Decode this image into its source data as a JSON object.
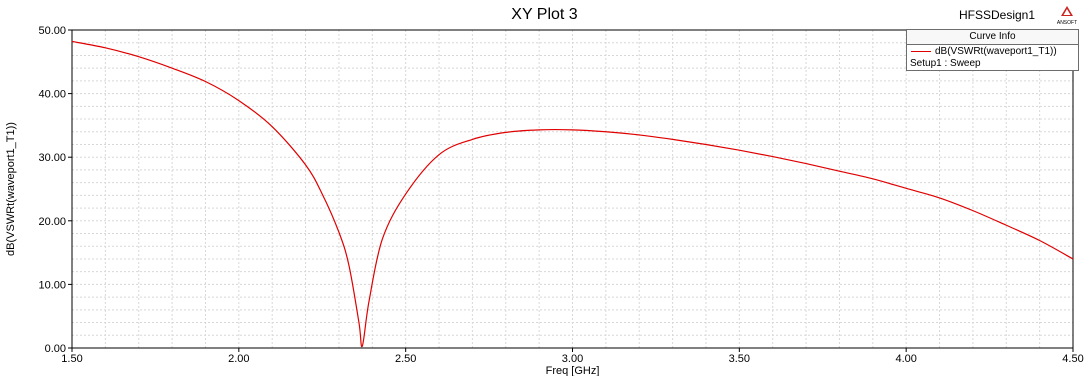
{
  "window": {
    "design_name": "HFSSDesign1",
    "brand": "ANSOFT",
    "brand_icon": "ansoft-triangle-icon"
  },
  "legend": {
    "title": "Curve Info",
    "entries": [
      {
        "label": "dB(VSWRt(waveport1_T1))",
        "sublabel": "Setup1 : Sweep",
        "color": "#e00000"
      }
    ]
  },
  "chart_data": {
    "type": "line",
    "title": "XY Plot 3",
    "xlabel": "Freq [GHz]",
    "ylabel": "dB(VSWRt(waveport1_T1))",
    "xlim": [
      1.5,
      4.5
    ],
    "ylim": [
      0,
      50
    ],
    "xticks": [
      1.5,
      2.0,
      2.5,
      3.0,
      3.5,
      4.0,
      4.5
    ],
    "xtick_labels": [
      "1.50",
      "2.00",
      "2.50",
      "3.00",
      "3.50",
      "4.00",
      "4.50"
    ],
    "yticks": [
      0,
      10,
      20,
      30,
      40,
      50
    ],
    "ytick_labels": [
      "0.00",
      "10.00",
      "20.00",
      "30.00",
      "40.00",
      "50.00"
    ],
    "grid": true,
    "legend_position": "top-right",
    "series": [
      {
        "name": "dB(VSWRt(waveport1_T1))",
        "color": "#e00000",
        "x": [
          1.5,
          1.6,
          1.7,
          1.8,
          1.9,
          2.0,
          2.1,
          2.2,
          2.25,
          2.3,
          2.33,
          2.36,
          2.37,
          2.39,
          2.43,
          2.5,
          2.6,
          2.7,
          2.8,
          2.9,
          3.0,
          3.1,
          3.2,
          3.3,
          3.4,
          3.5,
          3.6,
          3.7,
          3.8,
          3.9,
          4.0,
          4.1,
          4.2,
          4.3,
          4.4,
          4.5
        ],
        "y": [
          48.2,
          47.2,
          45.8,
          44.0,
          41.9,
          38.9,
          34.8,
          28.8,
          24.2,
          18.2,
          13.0,
          4.0,
          0.3,
          7.3,
          17.1,
          24.2,
          30.4,
          32.8,
          33.9,
          34.3,
          34.3,
          34.0,
          33.5,
          32.8,
          32.0,
          31.1,
          30.1,
          29.0,
          27.8,
          26.6,
          25.1,
          23.6,
          21.6,
          19.3,
          16.9,
          14.0
        ]
      }
    ]
  }
}
